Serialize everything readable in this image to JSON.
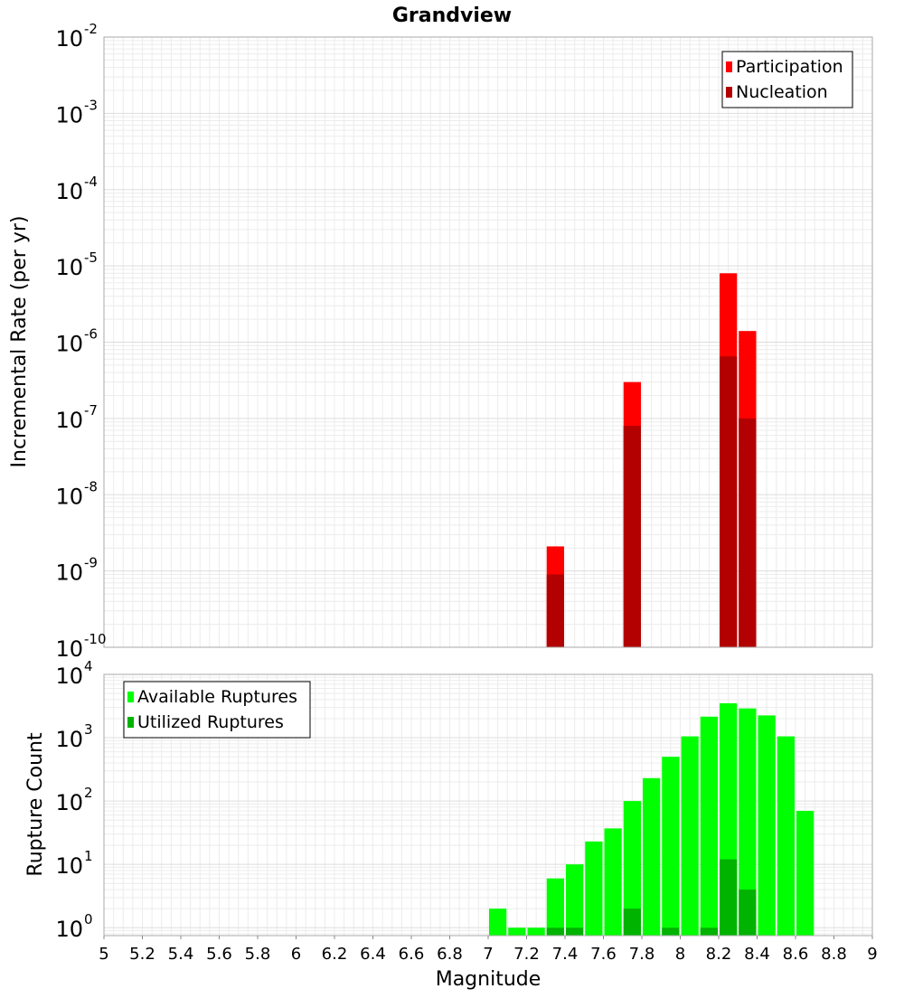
{
  "title": "Grandview",
  "chart_data": [
    {
      "type": "bar",
      "title": "Grandview",
      "xlabel": "Magnitude",
      "ylabel": "Incremental Rate (per yr)",
      "y_scale": "log",
      "xlim": [
        5,
        9
      ],
      "ylim": [
        1e-10,
        0.01
      ],
      "y_ticks": [
        {
          "base": "10",
          "exp": "-2"
        },
        {
          "base": "10",
          "exp": "-3"
        },
        {
          "base": "10",
          "exp": "-4"
        },
        {
          "base": "10",
          "exp": "-5"
        },
        {
          "base": "10",
          "exp": "-6"
        },
        {
          "base": "10",
          "exp": "-7"
        },
        {
          "base": "10",
          "exp": "-8"
        },
        {
          "base": "10",
          "exp": "-9"
        },
        {
          "base": "10",
          "exp": "-10"
        }
      ],
      "legend_position": "top-right",
      "series": [
        {
          "name": "Participation",
          "color": "#ff0000",
          "x": [
            7.35,
            7.75,
            8.25,
            8.35
          ],
          "values": [
            2.1e-09,
            3e-07,
            8e-06,
            1.4e-06
          ]
        },
        {
          "name": "Nucleation",
          "color": "#b30000",
          "x": [
            7.35,
            7.75,
            8.25,
            8.35
          ],
          "values": [
            9e-10,
            8e-08,
            6.5e-07,
            1e-07
          ]
        }
      ]
    },
    {
      "type": "bar",
      "xlabel": "Magnitude",
      "ylabel": "Rupture Count",
      "y_scale": "log",
      "xlim": [
        5,
        9
      ],
      "ylim": [
        0.75,
        10000
      ],
      "y_ticks": [
        {
          "base": "10",
          "exp": "4"
        },
        {
          "base": "10",
          "exp": "3"
        },
        {
          "base": "10",
          "exp": "2"
        },
        {
          "base": "10",
          "exp": "1"
        },
        {
          "base": "10",
          "exp": "0"
        }
      ],
      "x_ticks": [
        "5",
        "5.2",
        "5.4",
        "5.6",
        "5.8",
        "6",
        "6.2",
        "6.4",
        "6.6",
        "6.8",
        "7",
        "7.2",
        "7.4",
        "7.6",
        "7.8",
        "8",
        "8.2",
        "8.4",
        "8.6",
        "8.8",
        "9"
      ],
      "legend_position": "top-left",
      "series": [
        {
          "name": "Available Ruptures",
          "color": "#00ff00",
          "x": [
            7.05,
            7.15,
            7.25,
            7.35,
            7.45,
            7.55,
            7.65,
            7.75,
            7.85,
            7.95,
            8.05,
            8.15,
            8.25,
            8.35,
            8.45,
            8.55,
            8.65
          ],
          "values": [
            2,
            1,
            1,
            6,
            10,
            23,
            37,
            100,
            230,
            500,
            1050,
            2150,
            3500,
            2900,
            2250,
            1050,
            70
          ]
        },
        {
          "name": "Utilized Ruptures",
          "color": "#00b300",
          "x": [
            7.35,
            7.45,
            7.75,
            7.95,
            8.15,
            8.25,
            8.35
          ],
          "values": [
            1,
            1,
            2,
            1,
            1,
            12,
            4
          ]
        }
      ]
    }
  ]
}
